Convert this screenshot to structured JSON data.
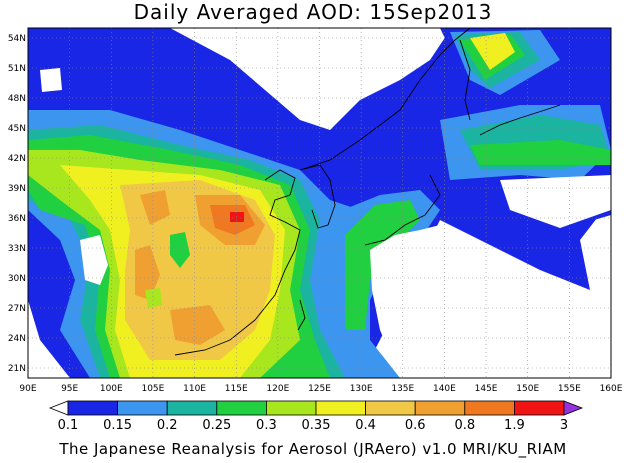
{
  "title": "Daily Averaged AOD: 15Sep2013",
  "footer": "The Japanese Reanalysis for Aerosol (JRAero) v1.0 MRI/KU_RIAM",
  "map": {
    "lon_range": [
      90,
      160
    ],
    "lat_range": [
      20,
      55
    ],
    "lon_ticks": [
      "90E",
      "95E",
      "100E",
      "105E",
      "110E",
      "115E",
      "120E",
      "125E",
      "130E",
      "135E",
      "140E",
      "145E",
      "150E",
      "155E",
      "160E"
    ],
    "lat_ticks": [
      "54N",
      "51N",
      "48N",
      "45N",
      "42N",
      "39N",
      "36N",
      "33N",
      "30N",
      "27N",
      "24N",
      "21N"
    ],
    "grid": "dotted"
  },
  "colorbar": {
    "labels": [
      "0.1",
      "0.15",
      "0.2",
      "0.25",
      "0.3",
      "0.35",
      "0.4",
      "0.6",
      "0.8",
      "1.9",
      "3"
    ],
    "colors": [
      "#ffffff",
      "#1a26e6",
      "#3c96f0",
      "#1ab4a0",
      "#20d040",
      "#a8e61e",
      "#f0f020",
      "#f0c846",
      "#f0a030",
      "#f07820",
      "#f01414",
      "#9632dc"
    ]
  }
}
